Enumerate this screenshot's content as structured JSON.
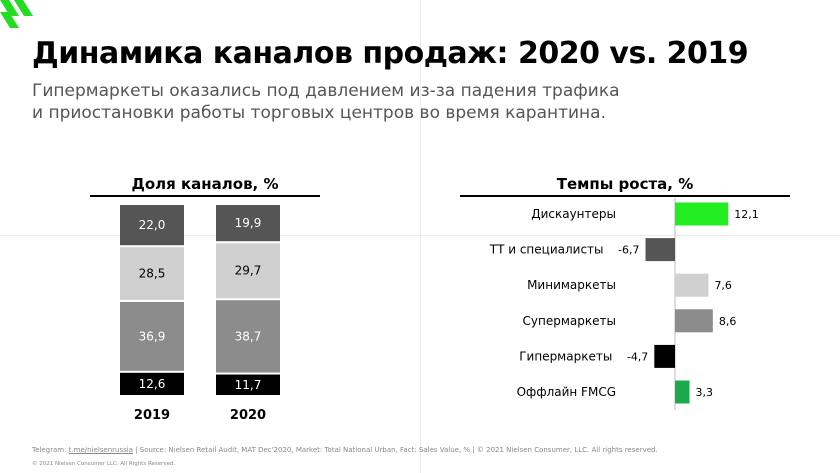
{
  "header": {
    "title": "Динамика каналов продаж: 2020 vs. 2019",
    "subtitle_line1": "Гипермаркеты оказались под давлением из-за падения трафика",
    "subtitle_line2": "и приостановки работы торговых центров во время карантина."
  },
  "chart_data": [
    {
      "type": "bar",
      "stacked": true,
      "title": "Доля каналов, %",
      "categories": [
        "2019",
        "2020"
      ],
      "series": [
        {
          "values": [
            12.6,
            11.7
          ],
          "labels": [
            "12,6",
            "11,7"
          ],
          "color": "#000000"
        },
        {
          "values": [
            36.9,
            38.7
          ],
          "labels": [
            "36,9",
            "38,7"
          ],
          "color": "#8c8c8c"
        },
        {
          "values": [
            28.5,
            29.7
          ],
          "labels": [
            "28,5",
            "29,7"
          ],
          "color": "#d0d0d0"
        },
        {
          "values": [
            22.0,
            19.9
          ],
          "labels": [
            "22,0",
            "19,9"
          ],
          "color": "#555555"
        }
      ]
    },
    {
      "type": "bar",
      "orientation": "horizontal",
      "title": "Темпы роста, %",
      "categories": [
        "Дискаунтеры",
        "ТТ и специалисты",
        "Минимаркеты",
        "Супермаркеты",
        "Гипермаркеты",
        "Оффлайн FMCG"
      ],
      "values": [
        12.1,
        -6.7,
        7.6,
        8.6,
        -4.7,
        3.3
      ],
      "labels": [
        "12,1",
        "-6,7",
        "7,6",
        "8,6",
        "-4,7",
        "3,3"
      ],
      "colors": [
        "#22ee22",
        "#555555",
        "#d0d0d0",
        "#8c8c8c",
        "#000000",
        "#1aaa4a"
      ]
    }
  ],
  "footer": {
    "prefix": "Telegram: ",
    "link": "t.me/nielsenrussia",
    "rest": " | Source: Nielsen Retail Audit, MAT Dec'2020, Market: Total National Urban, Fact: Sales Value, %   |   © 2021 Nielsen Consumer, LLC. All rights reserved.",
    "copyright": "© 2021 Nielsen Consumer LLC. All Rights Reserved."
  }
}
